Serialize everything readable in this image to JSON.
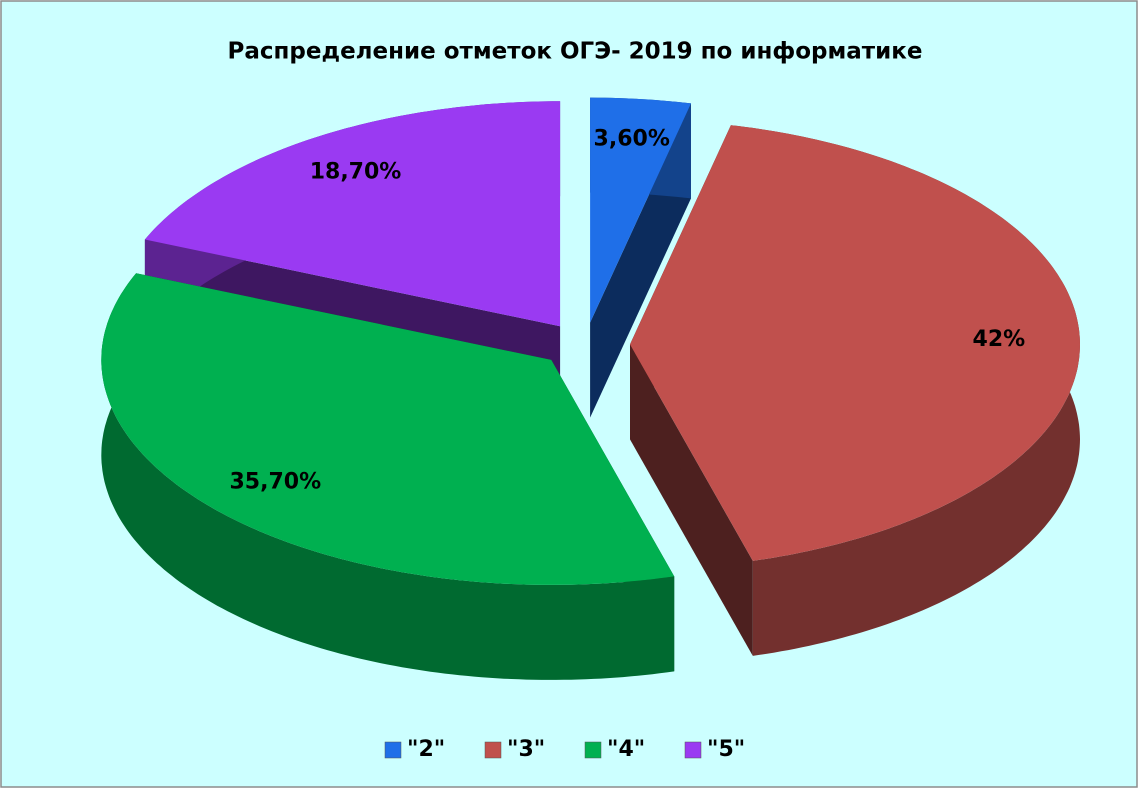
{
  "chart_data": {
    "type": "pie",
    "title": "Распределение отметок ОГЭ- 2019 по информатике",
    "categories": [
      "\"2\"",
      "\"3\"",
      "\"4\"",
      "\"5\""
    ],
    "values": [
      3.6,
      42,
      35.7,
      18.7
    ],
    "value_labels": [
      "3,60%",
      "42%",
      "35,70%",
      "18,70%"
    ],
    "colors": [
      "#1f6fe8",
      "#c0504d",
      "#00b050",
      "#9a3af2"
    ],
    "legend": "bottom"
  }
}
